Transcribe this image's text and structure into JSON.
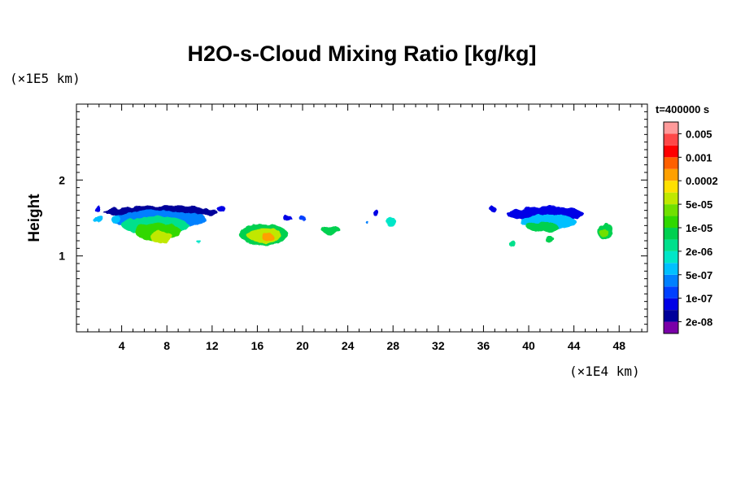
{
  "chart_data": {
    "type": "heatmap",
    "title": "H2O-s-Cloud Mixing Ratio [kg/kg]",
    "ylabel": "Height",
    "x_scale_label": "(×1E4 km)",
    "y_scale_label": "(×1E5 km)",
    "time_label": "t=400000 s",
    "x_range": [
      0,
      50.5
    ],
    "y_range": [
      0,
      3
    ],
    "x_ticks": [
      4,
      8,
      12,
      16,
      20,
      24,
      28,
      32,
      36,
      40,
      44,
      48
    ],
    "x_tick_labels": [
      "4",
      "8",
      "12",
      "16",
      "20",
      "24",
      "28",
      "32",
      "36",
      "40",
      "44",
      "48"
    ],
    "y_ticks": [
      1,
      2
    ],
    "y_tick_labels": [
      "1",
      "2"
    ],
    "colorbar": {
      "colors": [
        "#7a00a8",
        "#00009a",
        "#0000e6",
        "#0040ff",
        "#0080ff",
        "#00c0ff",
        "#00e6c8",
        "#00e08c",
        "#00d050",
        "#30d800",
        "#70e000",
        "#c0e800",
        "#ffe000",
        "#ffa000",
        "#ff6000",
        "#ff0000",
        "#ff4848",
        "#ff9a9a"
      ],
      "labels": [
        "2e-08",
        "1e-07",
        "5e-07",
        "2e-06",
        "1e-05",
        "5e-05",
        "0.0002",
        "0.001",
        "0.005"
      ]
    },
    "clouds": [
      {
        "x": 2.0,
        "y": 1.48,
        "rx": 0.4,
        "ry": 0.05,
        "level": 5
      },
      {
        "x": 1.9,
        "y": 1.62,
        "rx": 0.3,
        "ry": 0.03,
        "level": 2
      },
      {
        "x": 7.5,
        "y": 1.58,
        "rx": 5.0,
        "ry": 0.08,
        "level": 1
      },
      {
        "x": 7.3,
        "y": 1.48,
        "rx": 4.2,
        "ry": 0.12,
        "level": 4
      },
      {
        "x": 7.0,
        "y": 1.4,
        "rx": 3.0,
        "ry": 0.12,
        "level": 7
      },
      {
        "x": 7.2,
        "y": 1.32,
        "rx": 2.0,
        "ry": 0.12,
        "level": 9
      },
      {
        "x": 7.5,
        "y": 1.25,
        "rx": 1.0,
        "ry": 0.08,
        "level": 11
      },
      {
        "x": 3.5,
        "y": 1.48,
        "rx": 0.4,
        "ry": 0.05,
        "level": 5
      },
      {
        "x": 12.8,
        "y": 1.62,
        "rx": 0.4,
        "ry": 0.03,
        "level": 2
      },
      {
        "x": 10.8,
        "y": 1.18,
        "rx": 0.2,
        "ry": 0.015,
        "level": 6
      },
      {
        "x": 16.5,
        "y": 1.28,
        "rx": 2.2,
        "ry": 0.14,
        "level": 8
      },
      {
        "x": 16.6,
        "y": 1.27,
        "rx": 1.5,
        "ry": 0.1,
        "level": 11
      },
      {
        "x": 17.0,
        "y": 1.25,
        "rx": 0.6,
        "ry": 0.05,
        "level": 13
      },
      {
        "x": 18.6,
        "y": 1.5,
        "rx": 0.35,
        "ry": 0.03,
        "level": 2
      },
      {
        "x": 20.0,
        "y": 1.49,
        "rx": 0.3,
        "ry": 0.03,
        "level": 3
      },
      {
        "x": 22.5,
        "y": 1.34,
        "rx": 0.8,
        "ry": 0.05,
        "level": 8
      },
      {
        "x": 26.5,
        "y": 1.56,
        "rx": 0.2,
        "ry": 0.03,
        "level": 2
      },
      {
        "x": 27.8,
        "y": 1.45,
        "rx": 0.45,
        "ry": 0.06,
        "level": 6
      },
      {
        "x": 25.7,
        "y": 1.44,
        "rx": 0.12,
        "ry": 0.02,
        "level": 4
      },
      {
        "x": 36.8,
        "y": 1.61,
        "rx": 0.35,
        "ry": 0.04,
        "level": 2
      },
      {
        "x": 41.5,
        "y": 1.55,
        "rx": 3.4,
        "ry": 0.1,
        "level": 2
      },
      {
        "x": 41.8,
        "y": 1.45,
        "rx": 2.4,
        "ry": 0.1,
        "level": 5
      },
      {
        "x": 41.2,
        "y": 1.38,
        "rx": 1.5,
        "ry": 0.07,
        "level": 8
      },
      {
        "x": 38.5,
        "y": 1.16,
        "rx": 0.35,
        "ry": 0.04,
        "level": 7
      },
      {
        "x": 41.8,
        "y": 1.22,
        "rx": 0.3,
        "ry": 0.04,
        "level": 8
      },
      {
        "x": 46.8,
        "y": 1.32,
        "rx": 0.7,
        "ry": 0.1,
        "level": 8
      },
      {
        "x": 46.7,
        "y": 1.3,
        "rx": 0.4,
        "ry": 0.05,
        "level": 10
      }
    ]
  }
}
